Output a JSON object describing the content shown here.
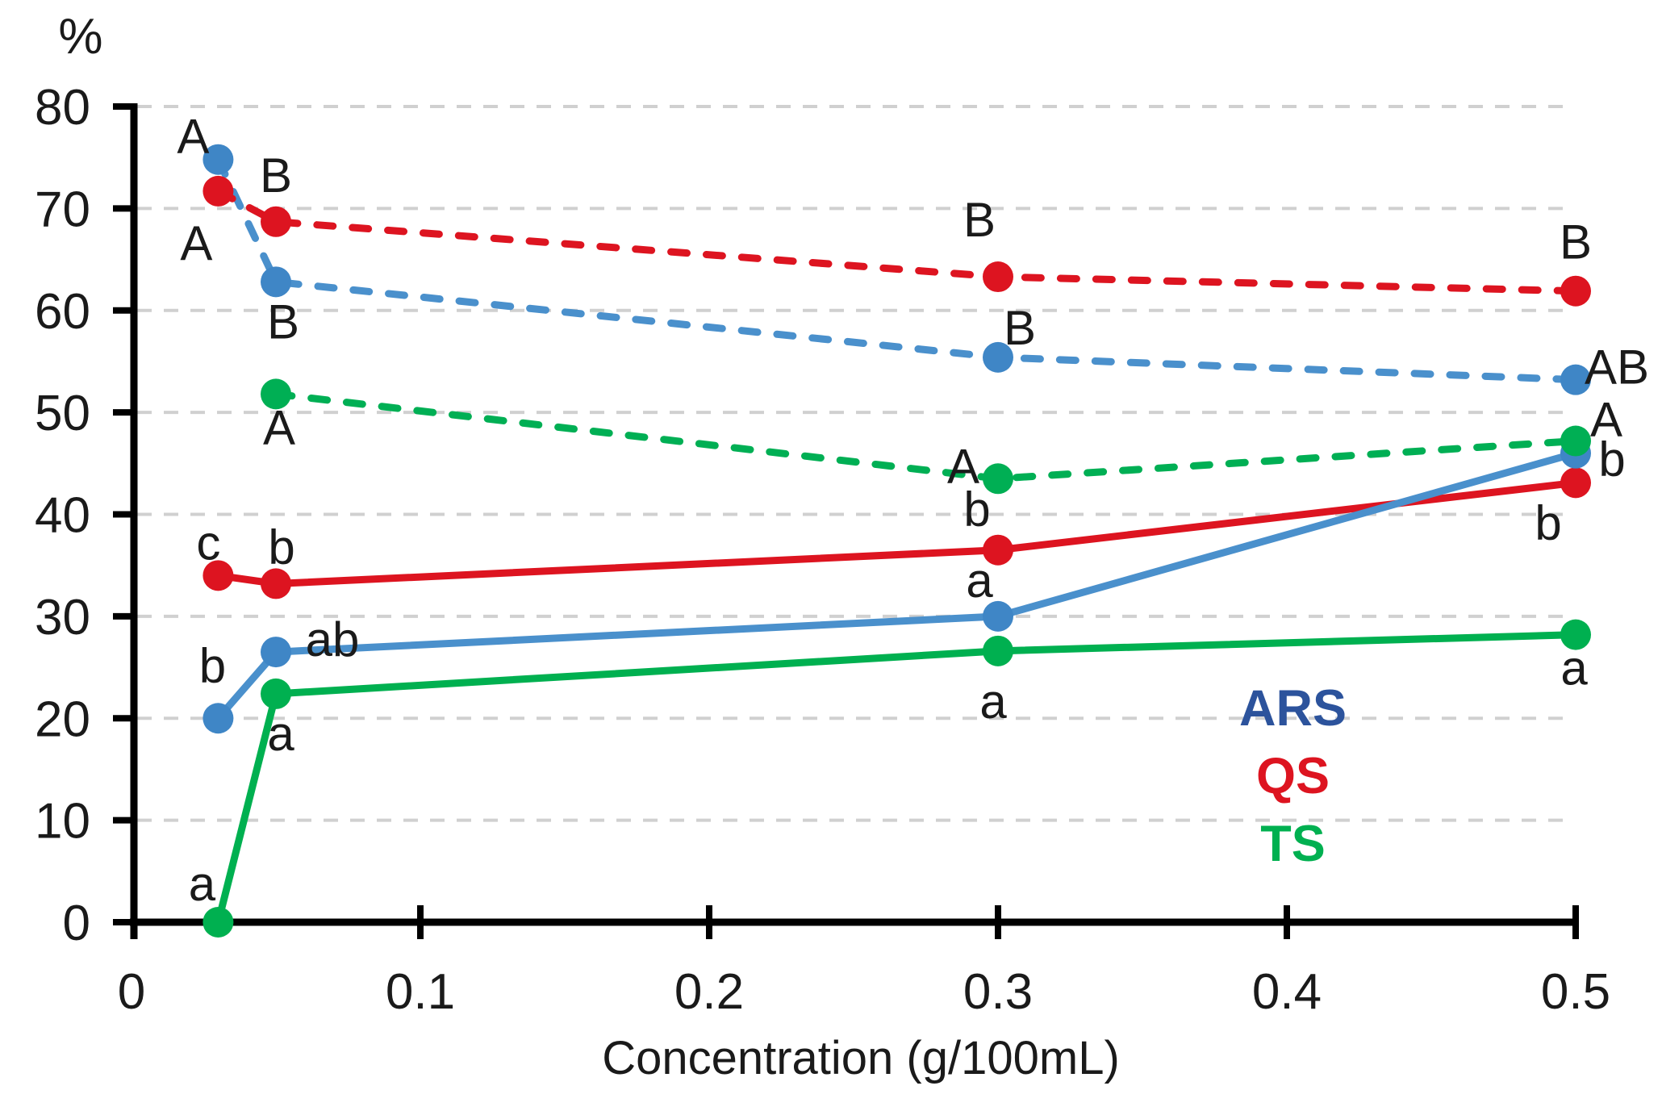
{
  "chart": {
    "unit_label": "%",
    "x_axis_title": "Concentration (g/100mL)",
    "text_color": "#1a1a1a",
    "grid_color": "#d0d0d0",
    "axis_color": "#000000"
  },
  "legend": {
    "position": "inside-right",
    "items": [
      {
        "label": "ARS",
        "color": "#2c539c"
      },
      {
        "label": "QS",
        "color": "#dd1420"
      },
      {
        "label": "TS",
        "color": "#00b050"
      }
    ]
  },
  "chart_data": {
    "type": "line",
    "title": "",
    "xlabel": "Concentration (g/100mL)",
    "ylabel": "%",
    "xlim": [
      0,
      0.52
    ],
    "ylim": [
      0,
      80
    ],
    "x_ticks": [
      "0",
      "0.1",
      "0.2",
      "0.3",
      "0.4",
      "0.5"
    ],
    "x_tick_values": [
      0,
      0.1,
      0.2,
      0.3,
      0.4,
      0.5
    ],
    "y_ticks": [
      80,
      70,
      60,
      50,
      40,
      30,
      20,
      10,
      0
    ],
    "grid": "horizontal dashed gray gridlines every 10 units",
    "legend_position": "inside right",
    "series": [
      {
        "name": "ARS dashed",
        "legend": "ARS",
        "style": "dashed",
        "color": "#4a90cc",
        "marker_color": "#3f86c6",
        "x": [
          0.03,
          0.05,
          0.3,
          0.5
        ],
        "y": [
          74.8,
          62.8,
          55.4,
          53.2
        ],
        "point_labels": [
          "A",
          "B",
          "B",
          "AB"
        ],
        "label_offsets": [
          [
            -31,
            -8
          ],
          [
            9,
            70
          ],
          [
            27,
            -16
          ],
          [
            51,
            5
          ]
        ]
      },
      {
        "name": "QS dashed",
        "legend": "QS",
        "style": "dashed",
        "color": "#dd1420",
        "marker_color": "#dd1420",
        "x": [
          0.03,
          0.05,
          0.3,
          0.5
        ],
        "y": [
          71.7,
          68.7,
          63.3,
          61.9
        ],
        "point_labels": [
          "A",
          "B",
          "B",
          "B"
        ],
        "label_offsets": [
          [
            -27,
            85
          ],
          [
            0,
            -37
          ],
          [
            -23,
            -50
          ],
          [
            0,
            -40
          ]
        ]
      },
      {
        "name": "QS solid",
        "legend": "QS",
        "style": "solid",
        "color": "#dd1420",
        "marker_color": "#dd1420",
        "x": [
          0.03,
          0.05,
          0.3,
          0.5
        ],
        "y": [
          34.0,
          33.2,
          36.5,
          43.1
        ],
        "point_labels": [
          "c",
          "b",
          "b",
          "b"
        ],
        "label_offsets": [
          [
            -12,
            -20
          ],
          [
            7,
            -25
          ],
          [
            -26,
            -30
          ],
          [
            -34,
            70
          ]
        ]
      },
      {
        "name": "ARS solid",
        "legend": "ARS",
        "style": "solid",
        "color": "#4a90cc",
        "marker_color": "#3f86c6",
        "x": [
          0.03,
          0.05,
          0.3,
          0.5
        ],
        "y": [
          20.0,
          26.5,
          30.0,
          46.0
        ],
        "point_labels": [
          "b",
          "ab",
          "a",
          "b"
        ],
        "label_offsets": [
          [
            -7,
            -45
          ],
          [
            70,
            5
          ],
          [
            -23,
            -24
          ],
          [
            45,
            28
          ]
        ]
      },
      {
        "name": "TS solid",
        "legend": "TS",
        "style": "solid",
        "color": "#00b050",
        "marker_color": "#00b050",
        "x": [
          0.03,
          0.05,
          0.3,
          0.5
        ],
        "y": [
          0,
          22.4,
          26.6,
          28.2
        ],
        "point_labels": [
          "a",
          "a",
          "a",
          "a"
        ],
        "label_offsets": [
          [
            -20,
            -27
          ],
          [
            6,
            70
          ],
          [
            -6,
            83
          ],
          [
            -2,
            62
          ]
        ]
      },
      {
        "name": "TS dashed",
        "legend": "TS",
        "style": "dashed",
        "color": "#00af54",
        "marker_color": "#00af54",
        "x": [
          0.05,
          0.3,
          0.5
        ],
        "y": [
          51.8,
          43.5,
          47.2
        ],
        "point_labels": [
          "A",
          "A",
          "A"
        ],
        "label_offsets": [
          [
            4,
            62
          ],
          [
            -43,
            5
          ],
          [
            38,
            -6
          ]
        ]
      }
    ]
  }
}
